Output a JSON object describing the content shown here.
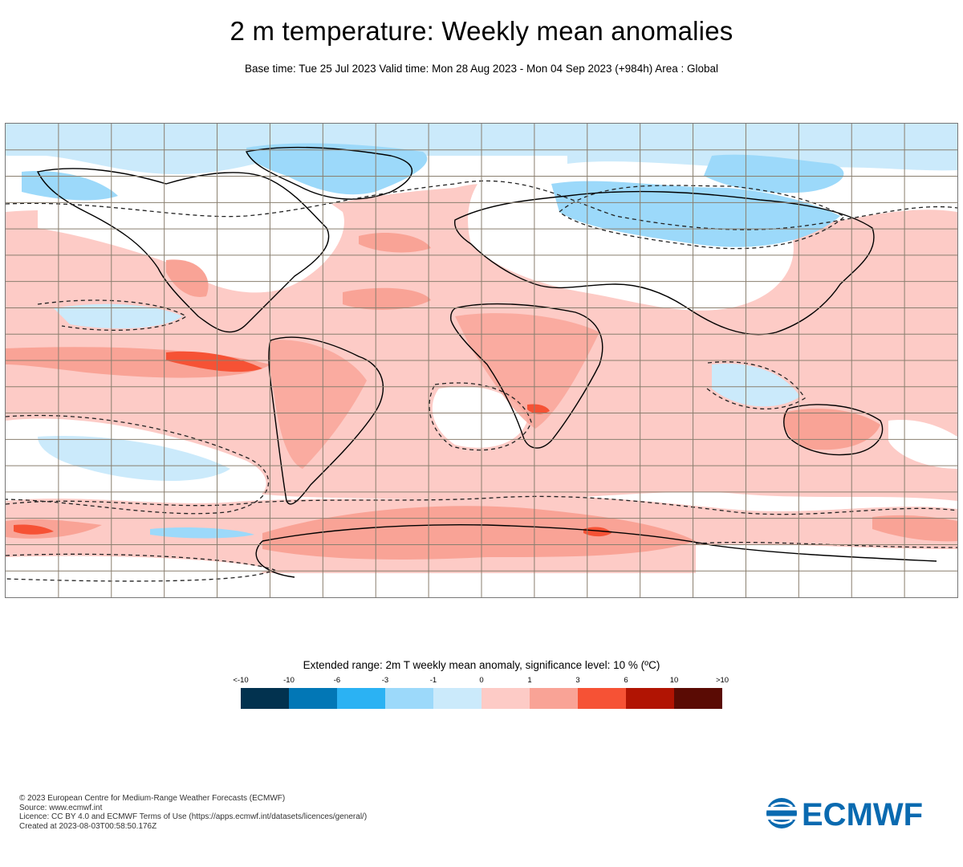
{
  "header": {
    "title": "2 m temperature: Weekly mean anomalies",
    "subtitle": "Base time: Tue 25 Jul 2023 Valid time: Mon 28 Aug 2023 - Mon 04 Sep 2023 (+984h) Area : Global"
  },
  "map": {
    "field": "2m temperature weekly mean anomaly",
    "area": "Global",
    "projection": "equirectangular"
  },
  "legend": {
    "title": "Extended range: 2m T weekly mean anomaly, significance level: 10 % (ºC)",
    "ticks": [
      "<-10",
      "-10",
      "-6",
      "-3",
      "-1",
      "0",
      "1",
      "3",
      "6",
      "10",
      ">10"
    ],
    "colors": [
      "#02324f",
      "#0277b6",
      "#2bb2f3",
      "#9cd9fa",
      "#cbeafb",
      "#fdcbc6",
      "#f9a396",
      "#f65235",
      "#b11403",
      "#5a0b04"
    ]
  },
  "credits": {
    "line1": "© 2023 European Centre for Medium-Range Weather Forecasts (ECMWF)",
    "line2": "Source: www.ecmwf.int",
    "line3": "Licence: CC BY 4.0 and ECMWF Terms of Use (https://apps.ecmwf.int/datasets/licences/general/)",
    "line4": "Created at 2023-08-03T00:58:50.176Z"
  },
  "logo": {
    "text": "ECMWF",
    "color": "#0a6ab0"
  }
}
